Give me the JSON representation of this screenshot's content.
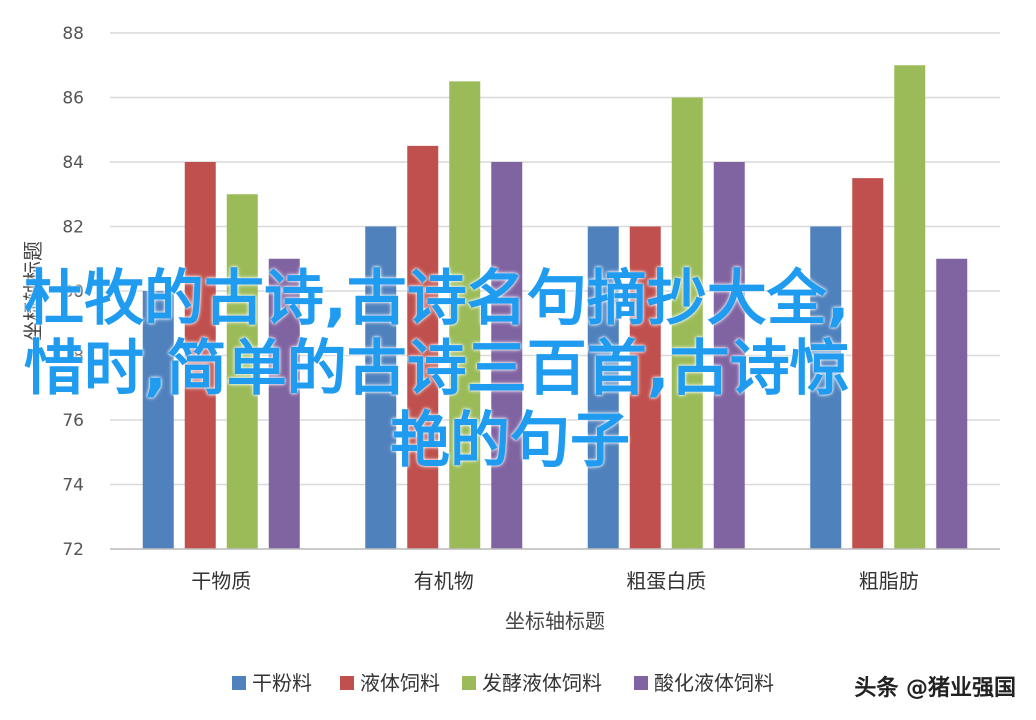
{
  "chart_data": {
    "type": "bar",
    "categories": [
      "干物质",
      "有机物",
      "粗蛋白质",
      "粗脂肪"
    ],
    "series": [
      {
        "name": "干粉料",
        "color": "#4f81bd",
        "values": [
          80,
          82,
          82,
          82
        ]
      },
      {
        "name": "液体饲料",
        "color": "#c0504d",
        "values": [
          84,
          84.5,
          82,
          83.5
        ]
      },
      {
        "name": "发酵液体饲料",
        "color": "#9bbb59",
        "values": [
          83,
          86.5,
          86,
          87
        ]
      },
      {
        "name": "酸化液体饲料",
        "color": "#8064a2",
        "values": [
          81,
          84,
          84,
          81
        ]
      }
    ],
    "xlabel": "坐标轴标题",
    "ylabel": "坐标轴标题",
    "ylim": [
      72,
      88
    ],
    "yticks": [
      72,
      74,
      76,
      78,
      80,
      82,
      84,
      86,
      88
    ],
    "grid": true,
    "legend": "bottom"
  },
  "overlay_text": {
    "line1": "杜牧的古诗,古诗名句摘抄大全,",
    "line2": "惜时,简单的古诗三百首,古诗惊",
    "line3": "艳的句子"
  },
  "watermark": "头条 @猪业强国"
}
